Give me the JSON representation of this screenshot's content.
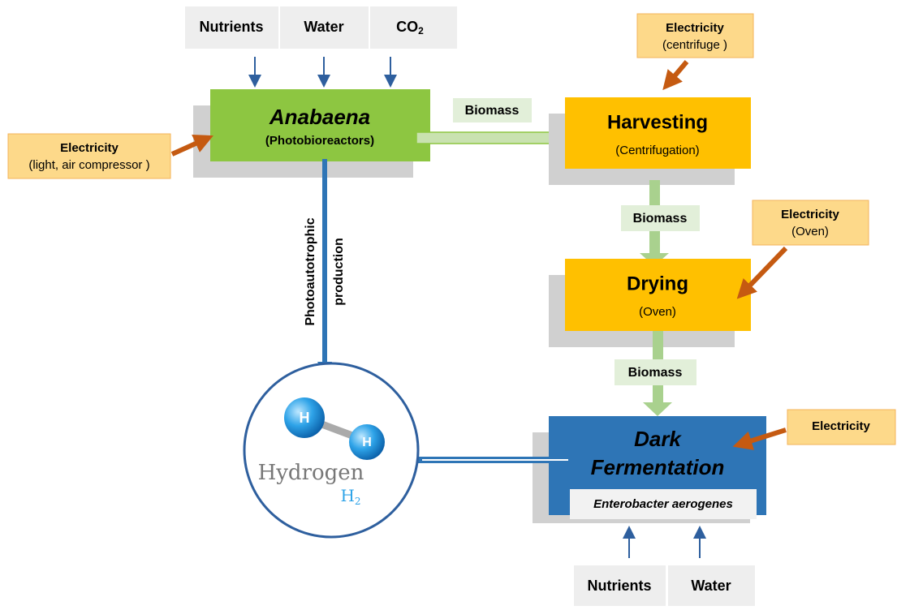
{
  "inputs_top": [
    {
      "label": "Nutrients"
    },
    {
      "label": "Water"
    },
    {
      "label": "CO",
      "subscript": "2"
    }
  ],
  "anabaena": {
    "title": "Anabaena",
    "subtitle": "(Photobioreactors)"
  },
  "electricity": [
    {
      "title": "Electricity",
      "subtitle": "(light, air compressor )"
    },
    {
      "title": "Electricity",
      "subtitle": "(centrifuge )"
    },
    {
      "title": "Electricity",
      "subtitle": "(Oven)"
    },
    {
      "title": "Electricity"
    }
  ],
  "biomass_labels": [
    "Biomass",
    "Biomass",
    "Biomass"
  ],
  "harvesting": {
    "title": "Harvesting",
    "subtitle": "(Centrifugation)"
  },
  "drying": {
    "title": "Drying",
    "subtitle": "(Oven)"
  },
  "dark_fermentation": {
    "title_lines": [
      "Dark",
      "Fermentation"
    ],
    "organism": "Enterobacter aerogenes"
  },
  "pathway_label": [
    "Photoautotrophic",
    "production"
  ],
  "hydrogen": {
    "name": "Hydrogen",
    "atom": "H",
    "formula": "H",
    "formula_subscript": "2"
  },
  "inputs_bottom": [
    {
      "label": "Nutrients"
    },
    {
      "label": "Water"
    }
  ]
}
